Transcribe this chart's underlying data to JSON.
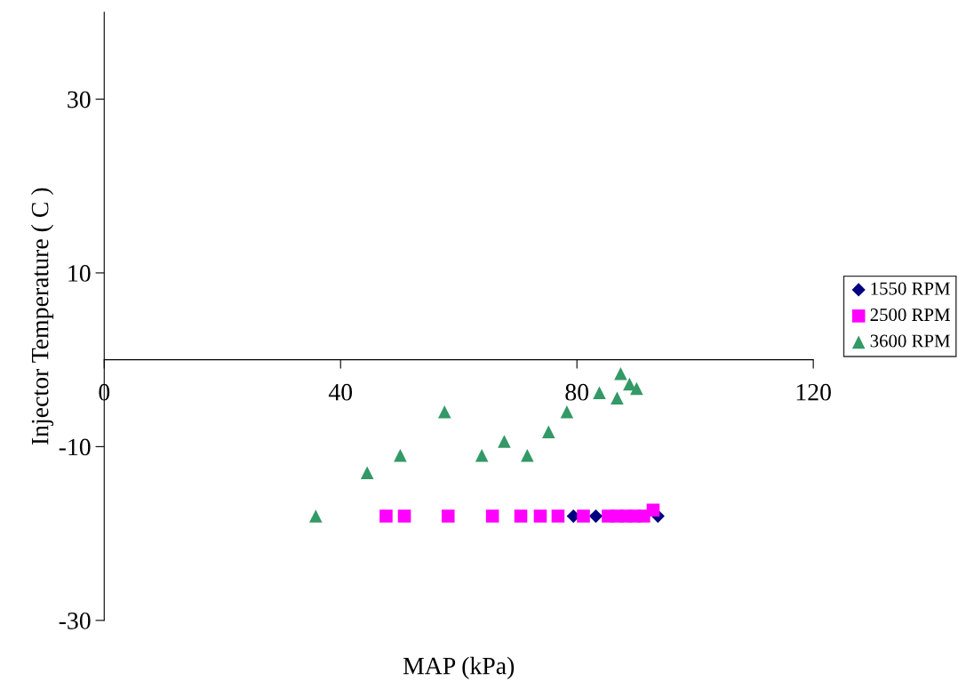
{
  "chart_data": {
    "type": "scatter",
    "xlabel": "MAP (kPa)",
    "ylabel": "Injector Temperature ( C )",
    "xlim": [
      0,
      120
    ],
    "xticks": [
      0,
      40,
      80,
      120
    ],
    "ylim": [
      -30,
      40
    ],
    "yticks": [
      -30,
      -10,
      10,
      30
    ],
    "grid": false,
    "legend": "right",
    "series": [
      {
        "name": "1550 RPM",
        "color": "#000080",
        "marker": "diamond",
        "x": [
          79.4,
          83.2,
          93.7
        ],
        "values": [
          -18,
          -18,
          -18
        ]
      },
      {
        "name": "2500 RPM",
        "color": "#ff00ff",
        "marker": "square",
        "x": [
          47.7,
          50.8,
          58.2,
          65.7,
          70.5,
          73.8,
          76.8,
          81.1,
          85.3,
          86.8,
          88.3,
          89.8,
          91.3,
          92.9
        ],
        "values": [
          -18,
          -18,
          -18,
          -18,
          -18,
          -18,
          -18,
          -18,
          -18,
          -18,
          -18,
          -18,
          -18,
          -17.3
        ]
      },
      {
        "name": "3600 RPM",
        "color": "#339966",
        "marker": "triangle",
        "x": [
          35.8,
          44.5,
          50.1,
          57.6,
          63.9,
          67.7,
          71.6,
          75.2,
          78.3,
          83.8,
          86.8,
          87.4,
          88.9,
          90.1
        ],
        "values": [
          -18,
          -13,
          -11,
          -6,
          -11,
          -9.4,
          -11,
          -8.3,
          -6,
          -3.8,
          -4.4,
          -1.6,
          -2.8,
          -3.3
        ]
      }
    ]
  }
}
